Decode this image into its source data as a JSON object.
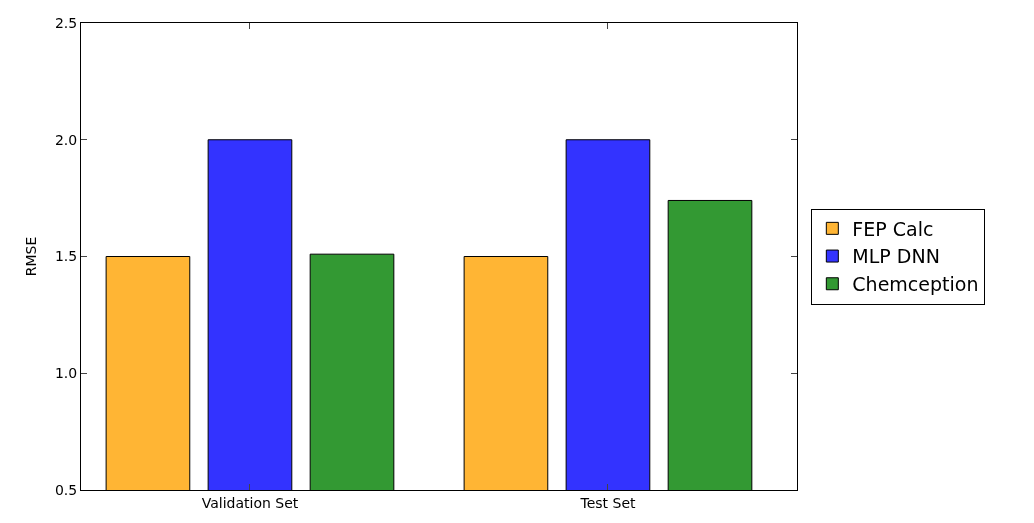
{
  "chart_data": {
    "type": "bar",
    "ylabel": "RMSE",
    "categories": [
      "Validation Set",
      "Test Set"
    ],
    "series": [
      {
        "name": "FEP Calc",
        "color": "#ffb534",
        "values": [
          1.5,
          1.5
        ]
      },
      {
        "name": "MLP DNN",
        "color": "#3333ff",
        "values": [
          2.0,
          2.0
        ]
      },
      {
        "name": "Chemception",
        "color": "#339933",
        "values": [
          1.51,
          1.74
        ]
      }
    ],
    "ylim": [
      0.5,
      2.5
    ],
    "yticks": [
      0.5,
      {
        "value": 1.0,
        "label": "1.0"
      },
      1.5,
      {
        "value": 2.0,
        "label": "2.0"
      },
      2.5
    ],
    "legend": "right"
  }
}
